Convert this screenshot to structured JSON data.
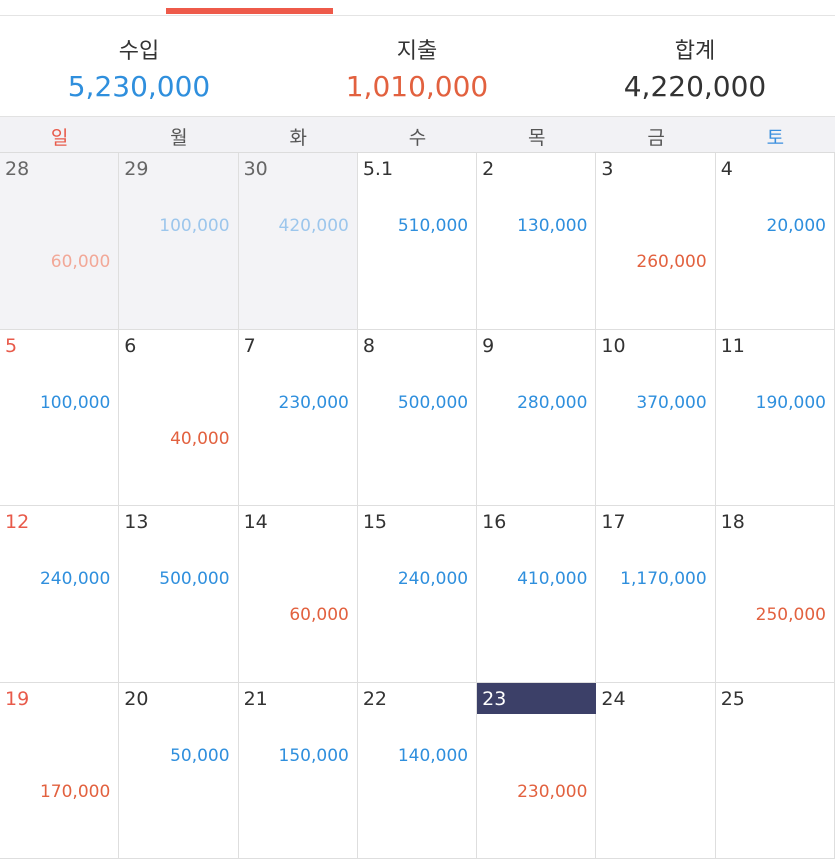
{
  "summary": [
    {
      "label": "수입",
      "value": "5,230,000",
      "color": "#2f8fdd"
    },
    {
      "label": "지출",
      "value": "1,010,000",
      "color": "#e2613f"
    },
    {
      "label": "합계",
      "value": "4,220,000",
      "color": "#333333"
    }
  ],
  "weekdays": [
    {
      "label": "일",
      "color": "#e85a4a"
    },
    {
      "label": "월",
      "color": "#555555"
    },
    {
      "label": "화",
      "color": "#555555"
    },
    {
      "label": "수",
      "color": "#555555"
    },
    {
      "label": "목",
      "color": "#555555"
    },
    {
      "label": "금",
      "color": "#555555"
    },
    {
      "label": "토",
      "color": "#3a8fde"
    }
  ],
  "weeks": [
    [
      {
        "day": "28",
        "income": null,
        "expense": "60,000",
        "other_month": true
      },
      {
        "day": "29",
        "income": "100,000",
        "expense": null,
        "other_month": true
      },
      {
        "day": "30",
        "income": "420,000",
        "expense": null,
        "other_month": true
      },
      {
        "day": "5.1",
        "income": "510,000",
        "expense": null
      },
      {
        "day": "2",
        "income": "130,000",
        "expense": null
      },
      {
        "day": "3",
        "income": null,
        "expense": "260,000"
      },
      {
        "day": "4",
        "income": "20,000",
        "expense": null
      }
    ],
    [
      {
        "day": "5",
        "income": "100,000",
        "expense": null
      },
      {
        "day": "6",
        "income": null,
        "expense": "40,000"
      },
      {
        "day": "7",
        "income": "230,000",
        "expense": null
      },
      {
        "day": "8",
        "income": "500,000",
        "expense": null
      },
      {
        "day": "9",
        "income": "280,000",
        "expense": null
      },
      {
        "day": "10",
        "income": "370,000",
        "expense": null
      },
      {
        "day": "11",
        "income": "190,000",
        "expense": null
      }
    ],
    [
      {
        "day": "12",
        "income": "240,000",
        "expense": null
      },
      {
        "day": "13",
        "income": "500,000",
        "expense": null
      },
      {
        "day": "14",
        "income": null,
        "expense": "60,000"
      },
      {
        "day": "15",
        "income": "240,000",
        "expense": null
      },
      {
        "day": "16",
        "income": "410,000",
        "expense": null
      },
      {
        "day": "17",
        "income": "1,170,000",
        "expense": null
      },
      {
        "day": "18",
        "income": null,
        "expense": "250,000"
      }
    ],
    [
      {
        "day": "19",
        "income": null,
        "expense": "170,000"
      },
      {
        "day": "20",
        "income": "50,000",
        "expense": null
      },
      {
        "day": "21",
        "income": "150,000",
        "expense": null
      },
      {
        "day": "22",
        "income": "140,000",
        "expense": null
      },
      {
        "day": "23",
        "income": null,
        "expense": "230,000",
        "highlight": true
      },
      {
        "day": "24",
        "income": null,
        "expense": null
      },
      {
        "day": "25",
        "income": null,
        "expense": null
      }
    ]
  ]
}
